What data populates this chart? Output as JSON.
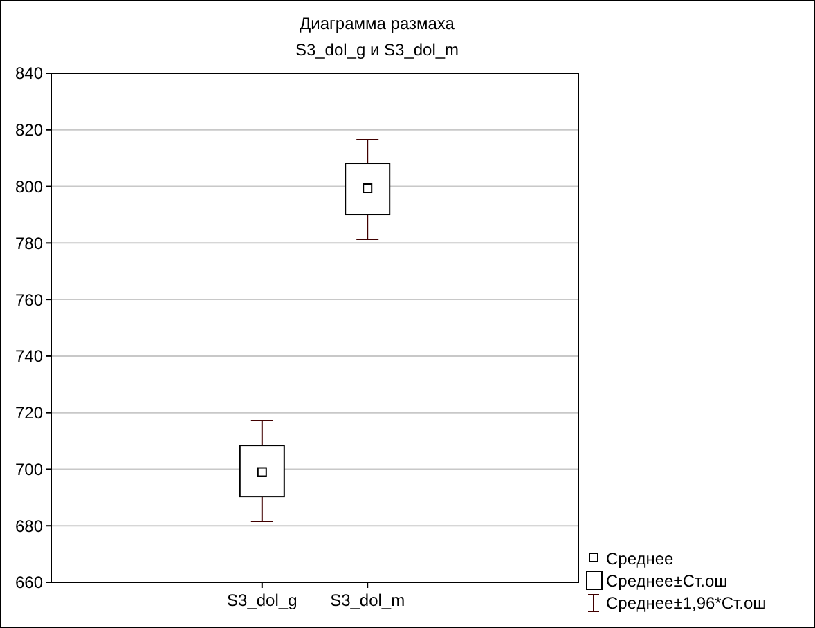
{
  "chart_data": {
    "type": "box",
    "title": "Диаграмма размаха",
    "subtitle": "S3_dol_g и S3_dol_m",
    "categories": [
      "S3_dol_g",
      "S3_dol_m"
    ],
    "boxes": [
      {
        "low": 681.5,
        "q1": 690.3,
        "median": 699,
        "q3": 708.4,
        "high": 717.2
      },
      {
        "low": 781.3,
        "q1": 790.1,
        "median": 799.4,
        "q3": 808.2,
        "high": 816.5
      }
    ],
    "color": "#000000",
    "ylim": [
      660,
      840
    ],
    "yticks": [
      660,
      680,
      700,
      720,
      740,
      760,
      780,
      800,
      820,
      840
    ],
    "grid": "y",
    "annotations": [
      "Среднее",
      "Среднее±Ст.ош",
      "Среднее±1,96*Ст.ош"
    ]
  }
}
